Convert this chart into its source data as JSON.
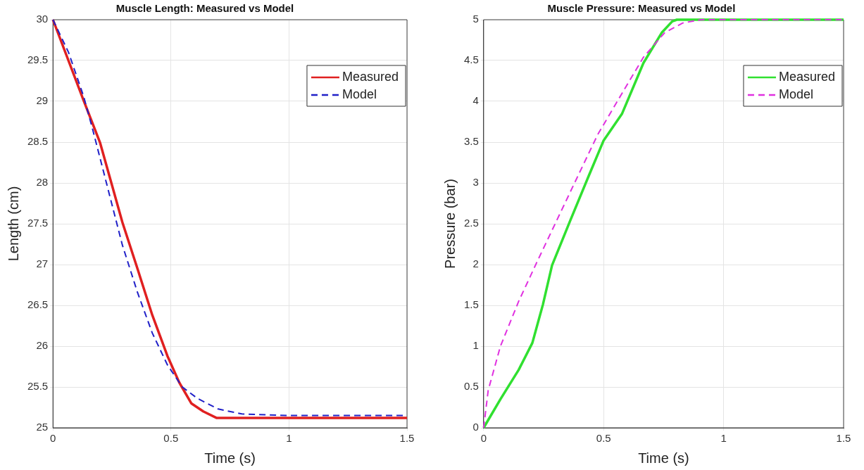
{
  "chart_data": [
    {
      "type": "line",
      "title": "Muscle Length: Measured vs Model",
      "xlabel": "Time (s)",
      "ylabel": "Length (cm)",
      "xlim": [
        0,
        1.5
      ],
      "xticks": [
        0,
        0.5,
        1,
        1.5
      ],
      "ylim": [
        25,
        30
      ],
      "yticks": [
        25,
        25.5,
        26,
        26.5,
        27,
        27.5,
        28,
        28.5,
        29,
        29.5,
        30
      ],
      "grid": true,
      "legend": "top right",
      "marker": "none",
      "series": [
        {
          "name": "Measured",
          "color": "#e02020",
          "line_style": "solid",
          "x": [
            0,
            0.13,
            0.2,
            0.294,
            0.358,
            0.421,
            0.485,
            0.536,
            0.586,
            0.637,
            0.694,
            1.5
          ],
          "values": [
            30,
            29.01,
            28.49,
            27.52,
            26.95,
            26.38,
            25.88,
            25.55,
            25.3,
            25.2,
            25.12,
            25.12
          ]
        },
        {
          "name": "Model",
          "color": "#2020c8",
          "line_style": "dashed",
          "x": [
            0,
            0.066,
            0.13,
            0.167,
            0.231,
            0.294,
            0.358,
            0.421,
            0.485,
            0.548,
            0.612,
            0.7,
            0.8,
            0.99,
            1.5
          ],
          "values": [
            30,
            29.6,
            29.06,
            28.67,
            27.95,
            27.24,
            26.66,
            26.16,
            25.77,
            25.5,
            25.36,
            25.23,
            25.17,
            25.15,
            25.15
          ]
        }
      ]
    },
    {
      "type": "line",
      "title": "Muscle Pressure: Measured vs Model",
      "xlabel": "Time (s)",
      "ylabel": "Pressure (bar)",
      "xlim": [
        0,
        1.5
      ],
      "xticks": [
        0,
        0.5,
        1,
        1.5
      ],
      "ylim": [
        0,
        5
      ],
      "yticks": [
        0,
        0.5,
        1,
        1.5,
        2,
        2.5,
        3,
        3.5,
        4,
        4.5,
        5
      ],
      "grid": true,
      "legend": "top right",
      "marker": "none",
      "series": [
        {
          "name": "Measured",
          "color": "#30e030",
          "line_style": "solid",
          "x": [
            0,
            0.07,
            0.146,
            0.203,
            0.247,
            0.285,
            0.361,
            0.437,
            0.5,
            0.577,
            0.666,
            0.742,
            0.786,
            0.805,
            1.5
          ],
          "values": [
            0,
            0.35,
            0.71,
            1.04,
            1.51,
            1.99,
            2.54,
            3.08,
            3.52,
            3.85,
            4.47,
            4.84,
            4.98,
            5,
            5
          ]
        },
        {
          "name": "Model",
          "color": "#e030e0",
          "line_style": "dashed",
          "x": [
            0,
            0.019,
            0.07,
            0.146,
            0.222,
            0.298,
            0.387,
            0.475,
            0.577,
            0.666,
            0.754,
            0.83,
            0.907,
            1.5
          ],
          "values": [
            0,
            0.46,
            1.0,
            1.55,
            2.03,
            2.5,
            3.05,
            3.59,
            4.1,
            4.54,
            4.84,
            4.96,
            5,
            5
          ]
        }
      ]
    }
  ]
}
